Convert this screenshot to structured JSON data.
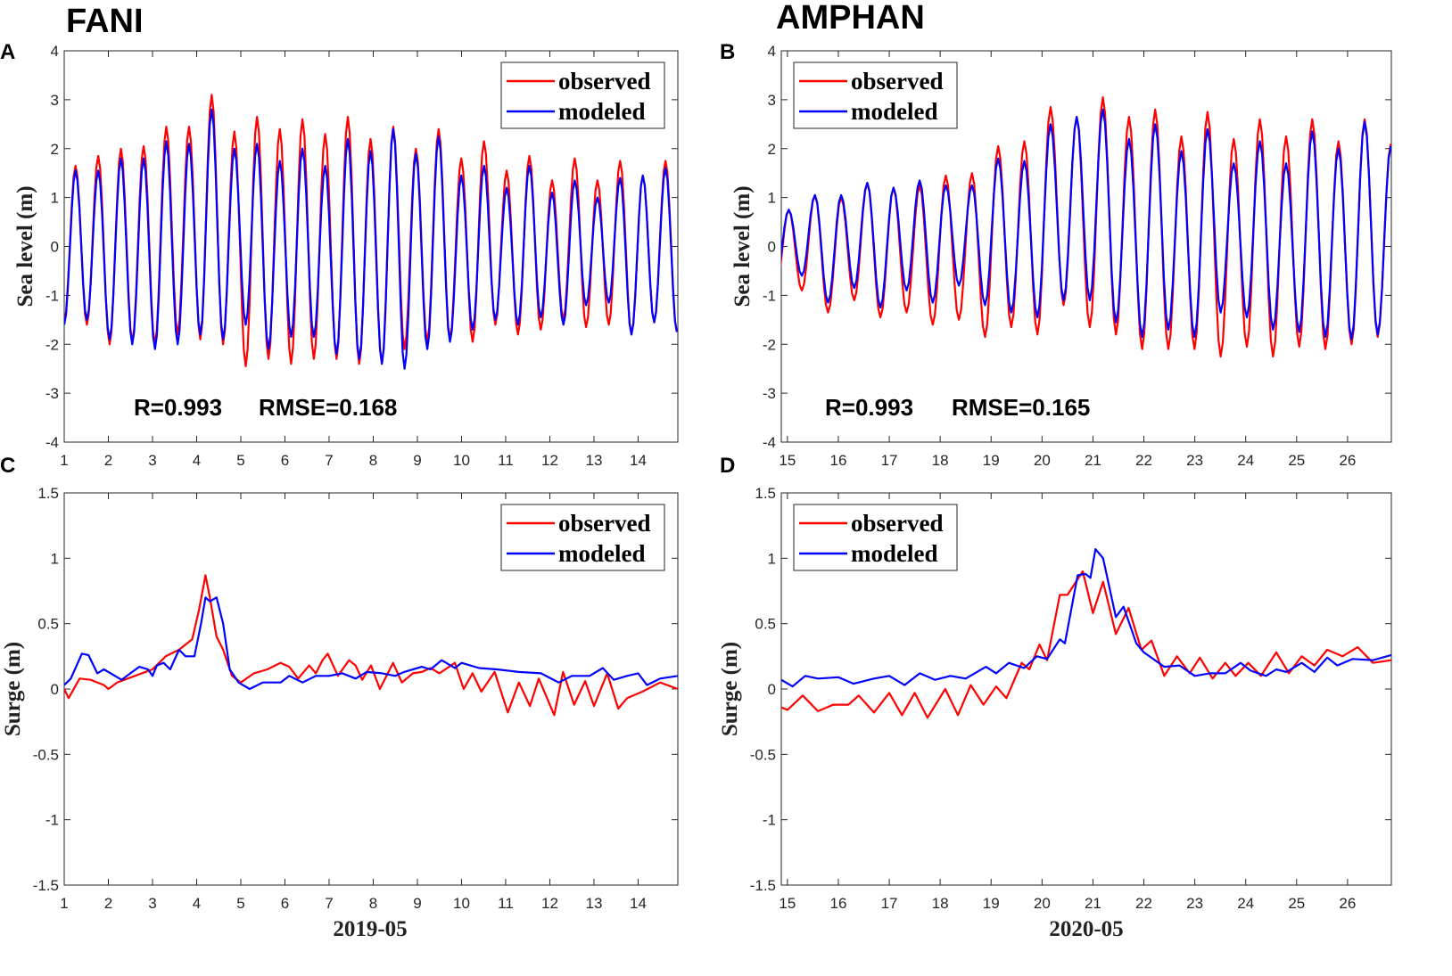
{
  "chart_data": {
    "titles": {
      "left": "FANI",
      "right": "AMPHAN"
    },
    "colors": {
      "observed": "#ff0000",
      "modeled": "#0000ff"
    },
    "panels": [
      {
        "id": "A",
        "type": "line",
        "column": "left",
        "row": "top",
        "ylabel": "Sea level (m)",
        "xlabel": "",
        "xlim": [
          1,
          14.9
        ],
        "ylim": [
          -4,
          4
        ],
        "xticks": [
          1,
          2,
          3,
          4,
          5,
          6,
          7,
          8,
          9,
          10,
          11,
          12,
          13,
          14
        ],
        "yticks": [
          -4,
          -3,
          -2,
          -1,
          0,
          1,
          2,
          3,
          4
        ],
        "legend": {
          "placement": "top-right",
          "entries": [
            "observed",
            "modeled"
          ]
        },
        "stats": {
          "r": "R=0.993",
          "rmse": "RMSE=0.168"
        },
        "series": [
          {
            "name": "observed",
            "kind": "tide",
            "t_start": 1.0,
            "half_period": 0.257,
            "troughs": [
              -1.55,
              -1.6,
              -2.0,
              -1.95,
              -2.0,
              -1.8,
              -1.9,
              -2.0,
              -2.45,
              -2.3,
              -2.4,
              -2.3,
              -2.3,
              -2.4,
              -2.4,
              -2.1,
              -1.95,
              -1.9,
              -1.95,
              -1.6,
              -1.8,
              -1.7,
              -1.5,
              -1.65,
              -1.6,
              -1.8,
              -1.55,
              -1.75
            ],
            "peaks": [
              1.65,
              1.85,
              2.0,
              2.05,
              2.45,
              2.45,
              3.1,
              2.35,
              2.65,
              2.4,
              2.6,
              2.3,
              2.65,
              2.2,
              2.45,
              2.0,
              2.4,
              1.8,
              2.15,
              1.55,
              1.85,
              1.35,
              1.8,
              1.35,
              1.75,
              1.45,
              1.75
            ]
          },
          {
            "name": "modeled",
            "kind": "tide",
            "t_start": 1.0,
            "half_period": 0.257,
            "troughs": [
              -1.6,
              -1.5,
              -1.9,
              -2.0,
              -2.1,
              -2.0,
              -1.8,
              -1.9,
              -1.6,
              -2.1,
              -1.85,
              -1.85,
              -2.2,
              -2.3,
              -2.4,
              -2.5,
              -2.1,
              -1.95,
              -1.7,
              -1.5,
              -1.6,
              -1.45,
              -1.6,
              -1.2,
              -1.15,
              -1.8,
              -1.55,
              -1.75
            ],
            "peaks": [
              1.55,
              1.55,
              1.8,
              1.8,
              2.15,
              2.1,
              2.8,
              2.0,
              2.1,
              1.75,
              2.0,
              1.65,
              2.2,
              1.95,
              2.4,
              1.9,
              2.25,
              1.45,
              1.65,
              1.2,
              1.65,
              1.1,
              1.35,
              1.0,
              1.4,
              1.45,
              1.6
            ]
          }
        ]
      },
      {
        "id": "B",
        "type": "line",
        "column": "right",
        "row": "top",
        "ylabel": "Sea level (m)",
        "xlabel": "",
        "xlim": [
          14.88,
          26.86
        ],
        "ylim": [
          -4,
          4
        ],
        "xticks": [
          15,
          16,
          17,
          18,
          19,
          20,
          21,
          22,
          23,
          24,
          25,
          26
        ],
        "yticks": [
          -4,
          -3,
          -2,
          -1,
          0,
          1,
          2,
          3,
          4
        ],
        "legend": {
          "placement": "top-left",
          "entries": [
            "observed",
            "modeled"
          ]
        },
        "stats": {
          "r": "R=0.993",
          "rmse": "RMSE=0.165"
        },
        "series": [
          {
            "name": "observed",
            "kind": "tide",
            "t_start": 14.77,
            "half_period": 0.257,
            "troughs": [
              -0.9,
              -0.9,
              -1.35,
              -1.1,
              -1.45,
              -1.35,
              -1.6,
              -1.5,
              -1.85,
              -1.65,
              -1.8,
              -1.2,
              -1.65,
              -1.8,
              -2.1,
              -2.1,
              -2.1,
              -2.25,
              -2.05,
              -2.25,
              -2.05,
              -2.1,
              -2.0,
              -1.85
            ],
            "peaks": [
              0.75,
              1.05,
              1.0,
              1.3,
              1.2,
              1.25,
              1.45,
              1.5,
              2.05,
              2.15,
              2.85,
              2.65,
              3.05,
              2.65,
              2.8,
              2.25,
              2.75,
              2.2,
              2.6,
              2.25,
              2.6,
              2.15,
              2.6,
              2.1
            ]
          },
          {
            "name": "modeled",
            "kind": "tide",
            "t_start": 14.77,
            "half_period": 0.257,
            "troughs": [
              -0.7,
              -0.6,
              -1.15,
              -0.85,
              -1.25,
              -0.9,
              -1.15,
              -0.8,
              -1.2,
              -1.35,
              -1.45,
              -1.1,
              -1.1,
              -1.55,
              -1.85,
              -1.7,
              -1.85,
              -1.35,
              -1.45,
              -1.7,
              -1.75,
              -1.85,
              -1.9,
              -1.8
            ],
            "peaks": [
              0.75,
              1.05,
              1.05,
              1.3,
              1.2,
              1.35,
              1.25,
              1.25,
              1.8,
              1.75,
              2.5,
              2.65,
              2.8,
              2.2,
              2.5,
              1.95,
              2.4,
              1.7,
              2.15,
              1.7,
              2.35,
              2.0,
              2.55,
              2.05
            ]
          }
        ]
      },
      {
        "id": "C",
        "type": "line",
        "column": "left",
        "row": "bottom",
        "ylabel": "Surge (m)",
        "xlabel": "2019-05",
        "xlim": [
          1,
          14.9
        ],
        "ylim": [
          -1.5,
          1.5
        ],
        "xticks": [
          1,
          2,
          3,
          4,
          5,
          6,
          7,
          8,
          9,
          10,
          11,
          12,
          13,
          14
        ],
        "yticks": [
          -1.5,
          -1,
          -0.5,
          0,
          0.5,
          1,
          1.5
        ],
        "legend": {
          "placement": "top-right",
          "entries": [
            "observed",
            "modeled"
          ]
        },
        "series": [
          {
            "name": "observed",
            "kind": "points",
            "x": [
              1.0,
              1.1,
              1.35,
              1.6,
              1.9,
              2.0,
              2.2,
              2.6,
              3.0,
              3.3,
              3.6,
              3.9,
              4.05,
              4.2,
              4.3,
              4.45,
              4.6,
              4.8,
              5.0,
              5.3,
              5.6,
              5.9,
              6.1,
              6.3,
              6.55,
              6.7,
              6.85,
              6.97,
              7.2,
              7.45,
              7.6,
              7.75,
              7.95,
              8.15,
              8.45,
              8.65,
              8.9,
              9.1,
              9.3,
              9.5,
              9.85,
              10.05,
              10.25,
              10.45,
              10.75,
              11.05,
              11.3,
              11.55,
              11.75,
              12.1,
              12.3,
              12.55,
              12.8,
              13.0,
              13.3,
              13.55,
              13.75,
              14.1,
              14.5,
              14.9
            ],
            "y": [
              0.0,
              -0.07,
              0.08,
              0.07,
              0.03,
              0.0,
              0.05,
              0.1,
              0.15,
              0.25,
              0.3,
              0.38,
              0.6,
              0.87,
              0.7,
              0.4,
              0.3,
              0.1,
              0.05,
              0.12,
              0.15,
              0.2,
              0.17,
              0.08,
              0.18,
              0.12,
              0.22,
              0.27,
              0.1,
              0.22,
              0.18,
              0.07,
              0.18,
              0.0,
              0.2,
              0.05,
              0.12,
              0.13,
              0.16,
              0.12,
              0.2,
              0.0,
              0.12,
              -0.02,
              0.13,
              -0.18,
              0.05,
              -0.13,
              0.08,
              -0.2,
              0.13,
              -0.12,
              0.06,
              -0.13,
              0.12,
              -0.15,
              -0.07,
              -0.02,
              0.05,
              0.0
            ]
          },
          {
            "name": "modeled",
            "kind": "points",
            "x": [
              1.0,
              1.15,
              1.4,
              1.55,
              1.75,
              1.9,
              2.15,
              2.3,
              2.5,
              2.7,
              2.9,
              3.0,
              3.1,
              3.25,
              3.4,
              3.6,
              3.75,
              3.95,
              4.1,
              4.2,
              4.3,
              4.45,
              4.6,
              4.75,
              4.95,
              5.2,
              5.5,
              5.9,
              6.1,
              6.4,
              6.7,
              7.0,
              7.3,
              7.6,
              7.85,
              8.2,
              8.5,
              8.7,
              9.1,
              9.3,
              9.55,
              9.85,
              10.0,
              10.4,
              10.8,
              11.3,
              11.8,
              12.2,
              12.5,
              12.9,
              13.2,
              13.45,
              13.75,
              14.0,
              14.2,
              14.5,
              14.9
            ],
            "y": [
              0.03,
              0.08,
              0.27,
              0.26,
              0.12,
              0.15,
              0.1,
              0.07,
              0.12,
              0.17,
              0.15,
              0.1,
              0.18,
              0.2,
              0.15,
              0.3,
              0.25,
              0.25,
              0.5,
              0.7,
              0.67,
              0.7,
              0.5,
              0.15,
              0.05,
              0.0,
              0.05,
              0.05,
              0.1,
              0.05,
              0.1,
              0.1,
              0.12,
              0.08,
              0.13,
              0.12,
              0.1,
              0.13,
              0.17,
              0.15,
              0.22,
              0.16,
              0.2,
              0.16,
              0.15,
              0.13,
              0.12,
              0.05,
              0.1,
              0.1,
              0.16,
              0.07,
              0.1,
              0.12,
              0.03,
              0.08,
              0.1
            ]
          }
        ]
      },
      {
        "id": "D",
        "type": "line",
        "column": "right",
        "row": "bottom",
        "ylabel": "Surge (m)",
        "xlabel": "2020-05",
        "xlim": [
          14.88,
          26.86
        ],
        "ylim": [
          -1.5,
          1.5
        ],
        "xticks": [
          15,
          16,
          17,
          18,
          19,
          20,
          21,
          22,
          23,
          24,
          25,
          26
        ],
        "yticks": [
          -1.5,
          -1,
          -0.5,
          0,
          0.5,
          1,
          1.5
        ],
        "legend": {
          "placement": "top-left",
          "entries": [
            "observed",
            "modeled"
          ]
        },
        "series": [
          {
            "name": "observed",
            "kind": "points",
            "x": [
              14.88,
              15.0,
              15.3,
              15.6,
              15.9,
              16.2,
              16.4,
              16.7,
              17.0,
              17.25,
              17.5,
              17.75,
              18.1,
              18.35,
              18.6,
              18.85,
              19.1,
              19.3,
              19.6,
              19.75,
              19.95,
              20.1,
              20.35,
              20.5,
              20.8,
              21.0,
              21.2,
              21.45,
              21.7,
              21.95,
              22.15,
              22.4,
              22.65,
              22.9,
              23.1,
              23.35,
              23.6,
              23.8,
              24.05,
              24.3,
              24.6,
              24.85,
              25.1,
              25.35,
              25.6,
              25.9,
              26.2,
              26.5,
              26.86
            ],
            "y": [
              -0.14,
              -0.16,
              -0.05,
              -0.17,
              -0.12,
              -0.12,
              -0.05,
              -0.18,
              -0.03,
              -0.2,
              -0.03,
              -0.22,
              0.0,
              -0.2,
              0.03,
              -0.12,
              0.02,
              -0.07,
              0.2,
              0.15,
              0.34,
              0.22,
              0.72,
              0.72,
              0.9,
              0.58,
              0.82,
              0.42,
              0.62,
              0.3,
              0.37,
              0.1,
              0.25,
              0.12,
              0.24,
              0.08,
              0.2,
              0.1,
              0.2,
              0.1,
              0.28,
              0.12,
              0.25,
              0.18,
              0.3,
              0.25,
              0.32,
              0.2,
              0.22
            ]
          },
          {
            "name": "modeled",
            "kind": "points",
            "x": [
              14.88,
              15.1,
              15.35,
              15.6,
              16.0,
              16.3,
              16.7,
              17.0,
              17.3,
              17.6,
              17.9,
              18.2,
              18.5,
              18.9,
              19.1,
              19.35,
              19.65,
              19.9,
              20.1,
              20.35,
              20.45,
              20.7,
              20.85,
              20.95,
              21.05,
              21.2,
              21.45,
              21.6,
              21.85,
              22.0,
              22.4,
              22.7,
              23.0,
              23.3,
              23.6,
              23.9,
              24.1,
              24.4,
              24.6,
              24.8,
              25.1,
              25.35,
              25.6,
              25.8,
              26.1,
              26.5,
              26.86
            ],
            "y": [
              0.07,
              0.02,
              0.1,
              0.08,
              0.09,
              0.04,
              0.08,
              0.1,
              0.03,
              0.12,
              0.07,
              0.1,
              0.08,
              0.17,
              0.12,
              0.2,
              0.16,
              0.25,
              0.23,
              0.38,
              0.35,
              0.87,
              0.88,
              0.85,
              1.07,
              1.0,
              0.55,
              0.63,
              0.35,
              0.28,
              0.17,
              0.18,
              0.1,
              0.12,
              0.12,
              0.2,
              0.14,
              0.1,
              0.15,
              0.13,
              0.2,
              0.13,
              0.24,
              0.18,
              0.23,
              0.22,
              0.26
            ]
          }
        ]
      }
    ]
  }
}
